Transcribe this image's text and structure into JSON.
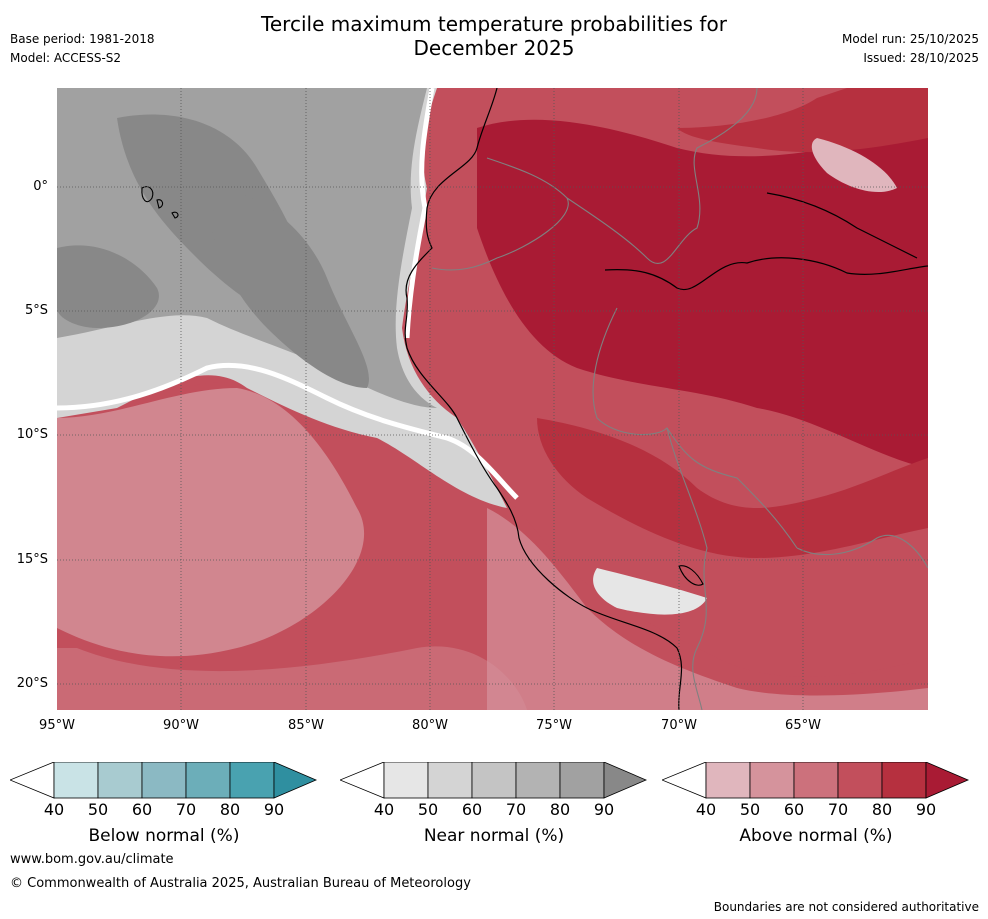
{
  "header": {
    "title_line1": "Tercile maximum temperature probabilities for",
    "title_line2": "December 2025",
    "base_period": "Base period: 1981-2018",
    "model": "Model: ACCESS-S2",
    "model_run": "Model run: 25/10/2025",
    "issued": "Issued: 28/10/2025"
  },
  "map": {
    "lat_labels": [
      "0°",
      "5°S",
      "10°S",
      "15°S",
      "20°S"
    ],
    "lon_labels": [
      "95°W",
      "90°W",
      "85°W",
      "80°W",
      "75°W",
      "70°W",
      "65°W"
    ]
  },
  "colorbars": [
    {
      "label": "Below normal (%)",
      "ticks": [
        "40",
        "50",
        "60",
        "70",
        "80",
        "90"
      ],
      "colors": [
        "#ffffff",
        "#c9e3e6",
        "#a8cbd0",
        "#8bb9c3",
        "#6caeb9",
        "#49a2b0",
        "#2f8fa0"
      ]
    },
    {
      "label": "Near normal (%)",
      "ticks": [
        "40",
        "50",
        "60",
        "70",
        "80",
        "90"
      ],
      "colors": [
        "#ffffff",
        "#e6e6e6",
        "#d4d4d4",
        "#c4c4c4",
        "#b3b3b3",
        "#a1a1a1",
        "#888888"
      ]
    },
    {
      "label": "Above normal (%)",
      "ticks": [
        "40",
        "50",
        "60",
        "70",
        "80",
        "90"
      ],
      "colors": [
        "#ffffff",
        "#e0b6bd",
        "#d5939c",
        "#cc717c",
        "#c24f5c",
        "#b6303f",
        "#a91b34"
      ]
    }
  ],
  "footer": {
    "url": "www.bom.gov.au/climate",
    "copyright": "© Commonwealth of Australia 2025, Australian Bureau of Meteorology",
    "disclaimer": "Boundaries are not considered authoritative"
  }
}
